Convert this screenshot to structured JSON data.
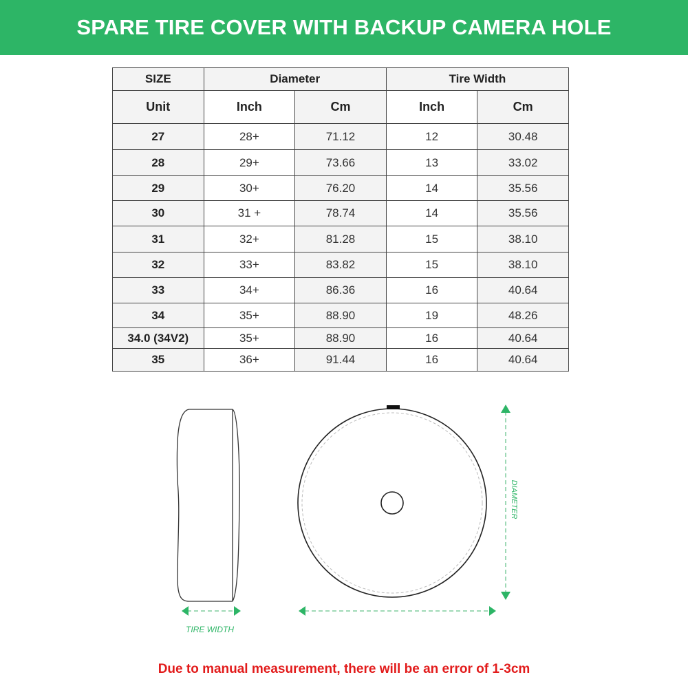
{
  "title": "SPARE TIRE COVER WITH BACKUP CAMERA HOLE",
  "table": {
    "header1": {
      "size": "SIZE",
      "diameter": "Diameter",
      "tire_width": "Tire Width"
    },
    "header2": [
      "Unit",
      "Inch",
      "Cm",
      "Inch",
      "Cm"
    ],
    "rows": [
      [
        "27",
        "28+",
        "71.12",
        "12",
        "30.48"
      ],
      [
        "28",
        "29+",
        "73.66",
        "13",
        "33.02"
      ],
      [
        "29",
        "30+",
        "76.20",
        "14",
        "35.56"
      ],
      [
        "30",
        "31 +",
        "78.74",
        "14",
        "35.56"
      ],
      [
        "31",
        "32+",
        "81.28",
        "15",
        "38.10"
      ],
      [
        "32",
        "33+",
        "83.82",
        "15",
        "38.10"
      ],
      [
        "33",
        "34+",
        "86.36",
        "16",
        "40.64"
      ],
      [
        "34",
        "35+",
        "88.90",
        "19",
        "48.26"
      ],
      [
        "34.0 (34V2)",
        "35+",
        "88.90",
        "16",
        "40.64"
      ],
      [
        "35",
        "36+",
        "91.44",
        "16",
        "40.64"
      ]
    ]
  },
  "diagram": {
    "tire_width_label": "TIRE WIDTH",
    "diameter_label": "DIAMETER",
    "accent": "#2db566"
  },
  "note": "Due to manual measurement, there will be an error of 1-3cm"
}
